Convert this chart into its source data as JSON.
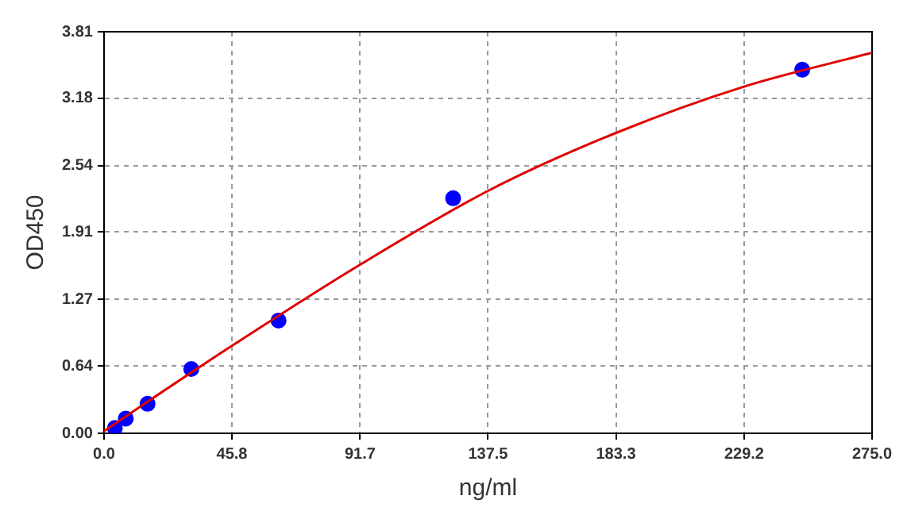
{
  "chart_data": {
    "type": "scatter",
    "xlabel": "ng/ml",
    "ylabel": "OD450",
    "xlim": [
      0,
      275
    ],
    "xticks": [
      {
        "value": 0,
        "label": "0.0"
      },
      45.8,
      91.7,
      137.5,
      183.3,
      229.2,
      {
        "value": 275,
        "label": "275.0"
      }
    ],
    "ylim": [
      0,
      3.81
    ],
    "yticks": [
      {
        "value": 0,
        "label": "0.00"
      },
      0.64,
      1.27,
      1.91,
      2.54,
      3.18,
      3.81
    ],
    "grid": true,
    "legend": false,
    "series": [
      {
        "type": "line",
        "color": "#e00000",
        "marker": "none",
        "x": [
          0,
          15.6,
          45.8,
          91.7,
          137.5,
          183.3,
          229.2,
          275
        ],
        "values": [
          0.02,
          0.3,
          0.83,
          1.6,
          2.3,
          2.85,
          3.29,
          3.61
        ]
      },
      {
        "color": "#0000ff",
        "marker": "circle",
        "x": [
          3.9,
          7.8,
          15.6,
          31.25,
          62.5,
          125,
          250
        ],
        "values": [
          0.05,
          0.14,
          0.28,
          0.61,
          1.07,
          2.23,
          3.45
        ]
      }
    ]
  }
}
